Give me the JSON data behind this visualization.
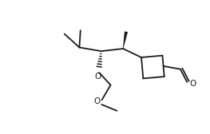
{
  "bg_color": "#ffffff",
  "line_color": "#1a1a1a",
  "line_width": 1.3,
  "figsize": [
    2.63,
    1.68
  ],
  "dpi": 100,
  "xlim": [
    0.0,
    10.0
  ],
  "ylim": [
    0.0,
    6.4
  ]
}
